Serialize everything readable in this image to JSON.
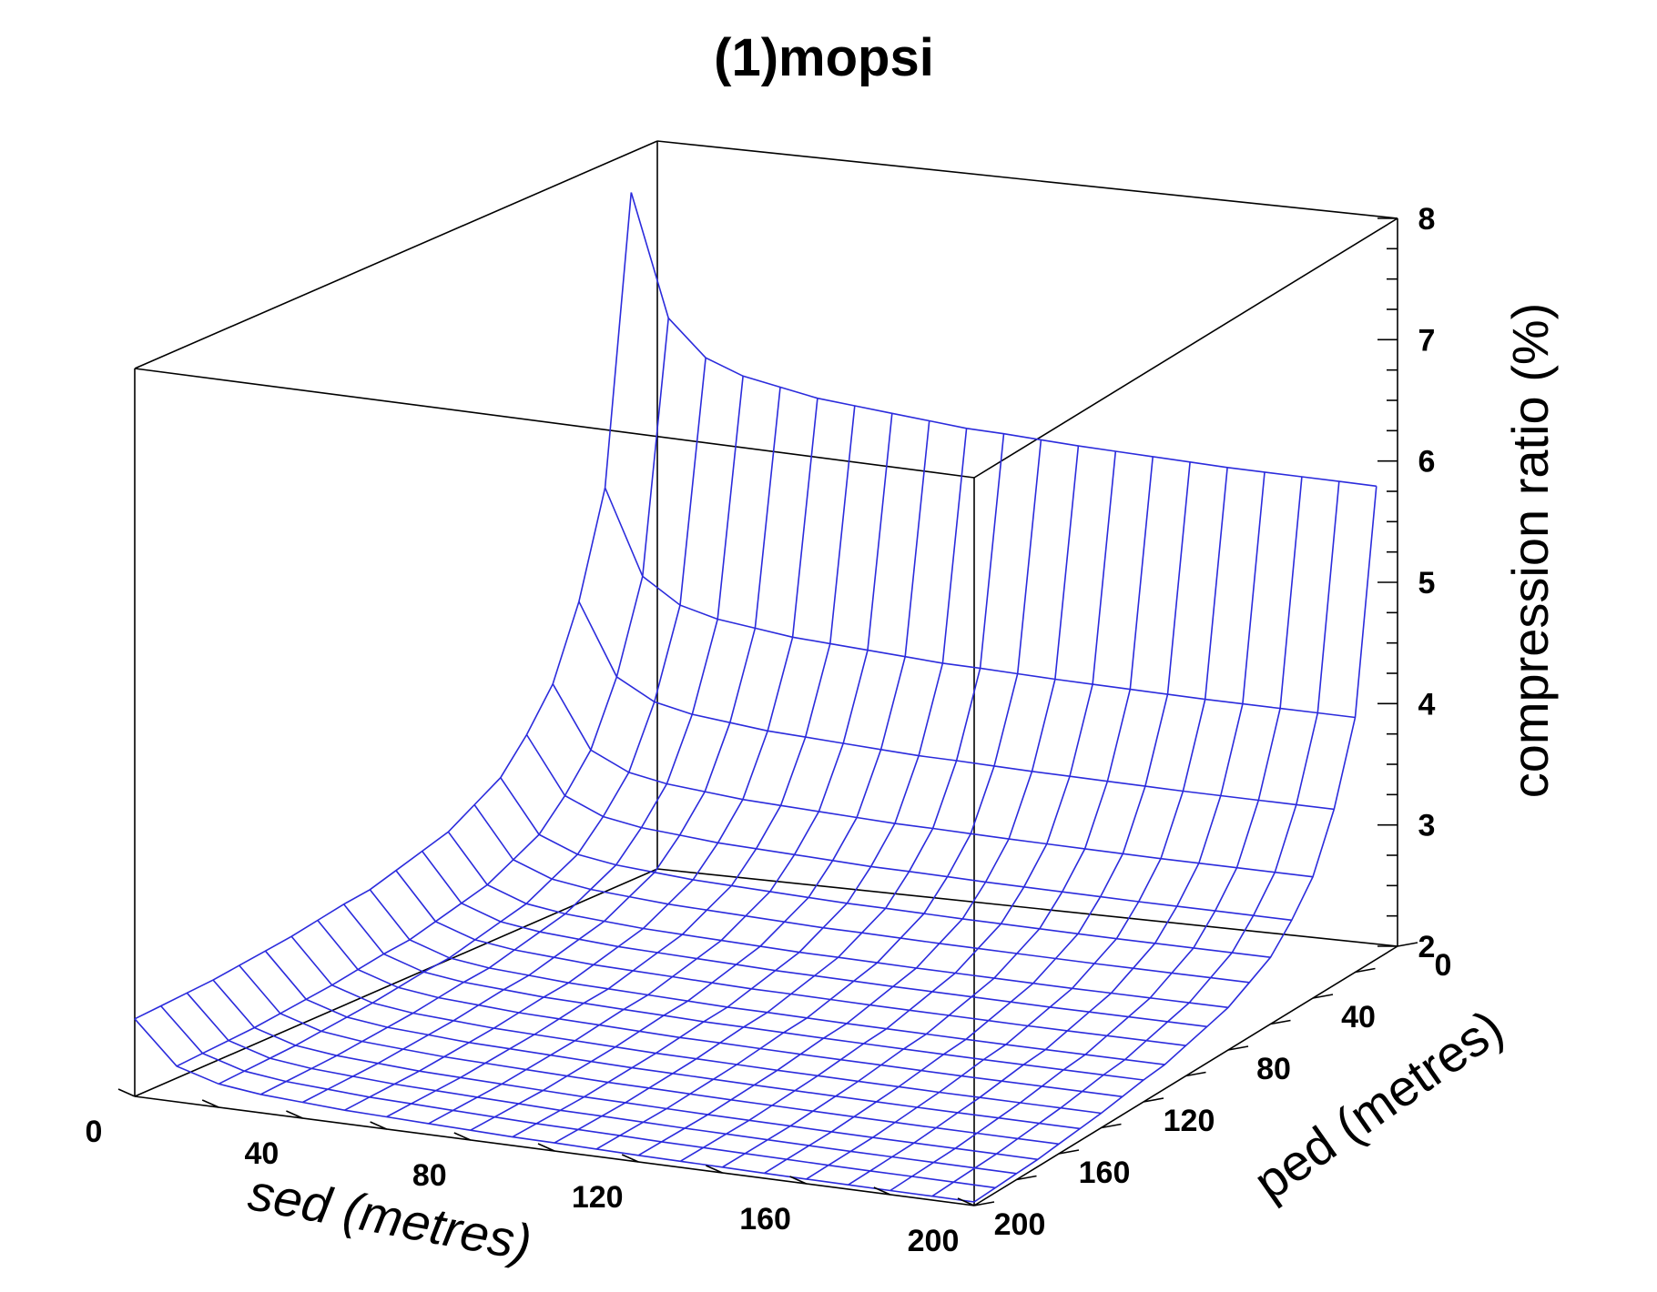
{
  "chart_data": {
    "type": "surface-3d",
    "title": "(1)mopsi",
    "xlabel": "sed (metres)",
    "ylabel": "ped (metres)",
    "zlabel": "compression ratio (%)",
    "x_ticks": [
      "0",
      "40",
      "80",
      "120",
      "160",
      "200"
    ],
    "y_ticks": [
      "0",
      "40",
      "80",
      "120",
      "160",
      "200"
    ],
    "z_ticks": [
      "2",
      "3",
      "4",
      "5",
      "6",
      "7",
      "8"
    ],
    "xlim": [
      0,
      200
    ],
    "ylim": [
      0,
      200
    ],
    "zlim": [
      2,
      8
    ],
    "grid": false,
    "mesh_color": "#2b2bdc",
    "surface": {
      "sed_values": [
        0,
        10,
        20,
        30,
        40,
        50,
        60,
        70,
        80,
        90,
        100,
        110,
        120,
        130,
        140,
        150,
        160,
        170,
        180,
        190,
        200
      ],
      "ped_values": [
        10,
        20,
        30,
        40,
        50,
        60,
        70,
        80,
        90,
        100,
        110,
        120,
        130,
        140,
        150,
        160,
        170,
        180,
        190,
        200
      ],
      "compression_ratio_vs_ped": [
        5.9,
        4.1,
        3.45,
        3.0,
        2.75,
        2.55,
        2.45,
        2.35,
        2.3,
        2.25,
        2.2,
        2.18,
        2.15,
        2.12,
        2.1,
        2.08,
        2.06,
        2.05,
        2.04,
        2.03
      ],
      "compression_ratio_sed_factor": [
        1.3,
        1.13,
        1.08,
        1.06,
        1.05,
        1.04,
        1.035,
        1.03,
        1.025,
        1.02,
        1.018,
        1.015,
        1.012,
        1.01,
        1.008,
        1.006,
        1.004,
        1.003,
        1.002,
        1.001,
        1.0
      ]
    }
  }
}
